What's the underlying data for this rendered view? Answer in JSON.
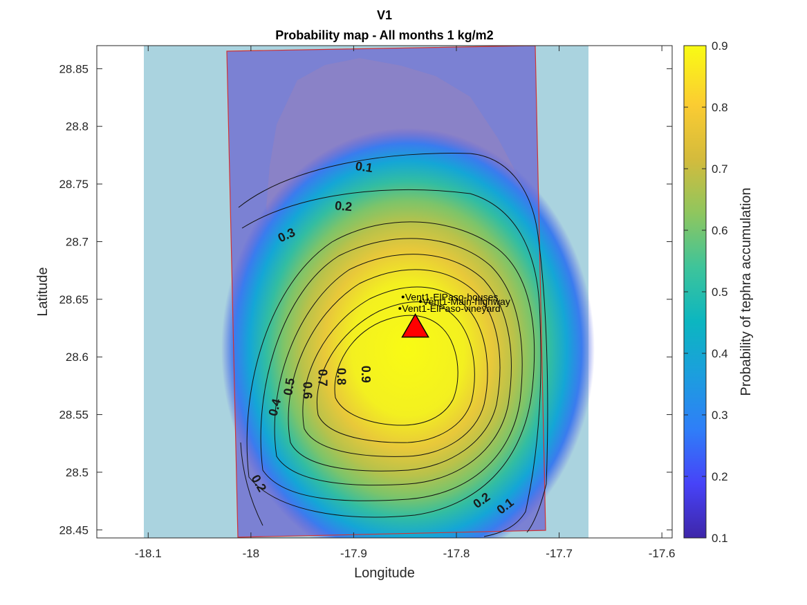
{
  "title": "V1",
  "subtitle": "Probability map - All months 1 kg/m2",
  "axes": {
    "xlabel": "Longitude",
    "ylabel": "Latitude",
    "xlim": [
      -18.15,
      -17.59
    ],
    "ylim": [
      28.443,
      28.87
    ],
    "xticks": [
      -18.1,
      -18,
      -17.9,
      -17.8,
      -17.7,
      -17.6
    ],
    "xtick_labels": [
      "-18.1",
      "-18",
      "-17.9",
      "-17.8",
      "-17.7",
      "-17.6"
    ],
    "yticks": [
      28.45,
      28.5,
      28.55,
      28.6,
      28.65,
      28.7,
      28.75,
      28.8,
      28.85
    ],
    "ytick_labels": [
      "28.45",
      "28.5",
      "28.55",
      "28.6",
      "28.65",
      "28.7",
      "28.75",
      "28.8",
      "28.85"
    ]
  },
  "colorbar": {
    "label": "Probability of tephra accumulation",
    "range": [
      0.1,
      0.9
    ],
    "ticks": [
      "0.1",
      "0.2",
      "0.3",
      "0.4",
      "0.5",
      "0.6",
      "0.7",
      "0.8",
      "0.9"
    ],
    "colormap": [
      "#3e26a8",
      "#4743f8",
      "#2f7ef8",
      "#1c9ede",
      "#0cb6c0",
      "#3ec49a",
      "#8fc65e",
      "#d4bb3c",
      "#fbcc32",
      "#f9fb14"
    ]
  },
  "chart_data": {
    "type": "map",
    "vent": {
      "lon": -17.84,
      "lat": 28.625,
      "color": "#ff0000"
    },
    "contour_levels": [
      0.1,
      0.2,
      0.3,
      0.4,
      0.5,
      0.6,
      0.7,
      0.8,
      0.9
    ],
    "contour_labels": [
      {
        "text": "0.1",
        "lon": -17.89,
        "lat": 28.764,
        "rotate": 8
      },
      {
        "text": "0.2",
        "lon": -17.91,
        "lat": 28.73,
        "rotate": 5
      },
      {
        "text": "0.3",
        "lon": -17.965,
        "lat": 28.705,
        "rotate": -25
      },
      {
        "text": "0.4",
        "lon": -17.976,
        "lat": 28.556,
        "rotate": -75
      },
      {
        "text": "0.5",
        "lon": -17.962,
        "lat": 28.574,
        "rotate": -80
      },
      {
        "text": "0.6",
        "lon": -17.946,
        "lat": 28.571,
        "rotate": 90
      },
      {
        "text": "0.7",
        "lon": -17.931,
        "lat": 28.582,
        "rotate": 90
      },
      {
        "text": "0.8",
        "lon": -17.913,
        "lat": 28.583,
        "rotate": 90
      },
      {
        "text": "0.9",
        "lon": -17.889,
        "lat": 28.585,
        "rotate": 90
      },
      {
        "text": "0.2",
        "lon": -17.993,
        "lat": 28.49,
        "rotate": 60
      },
      {
        "text": "0.2",
        "lon": -17.775,
        "lat": 28.475,
        "rotate": -35
      },
      {
        "text": "0.1",
        "lon": -17.752,
        "lat": 28.47,
        "rotate": -38
      }
    ],
    "sites": [
      {
        "name": "Vent1-ElPaso-houses",
        "lon": -17.852,
        "lat": 28.652
      },
      {
        "name": "Vent1-Main-highway",
        "lon": -17.835,
        "lat": 28.648
      },
      {
        "name": "Vent1-ElPaso-vineyard",
        "lon": -17.855,
        "lat": 28.642
      }
    ]
  }
}
